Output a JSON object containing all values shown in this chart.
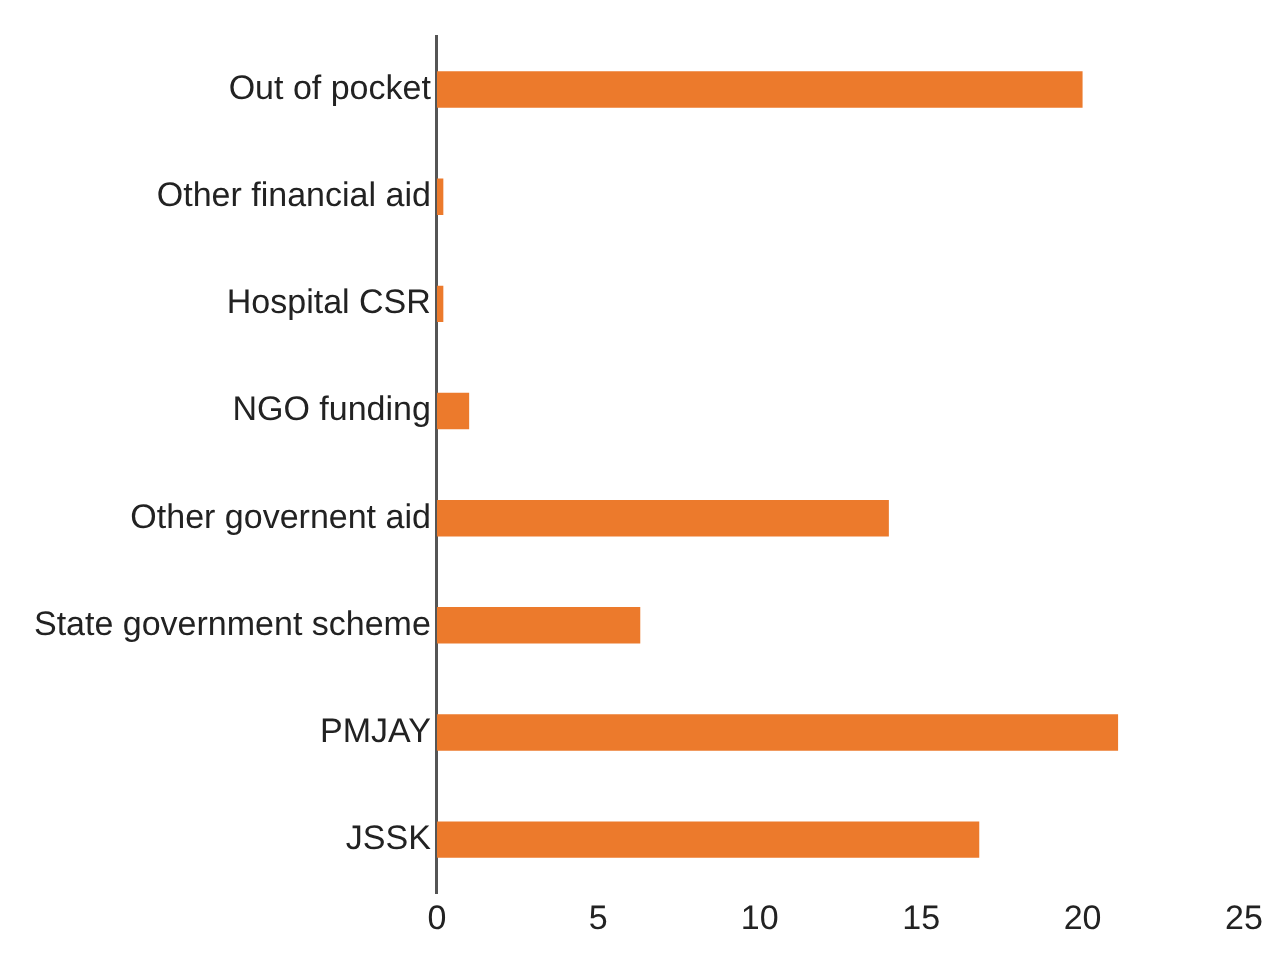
{
  "chart_data": {
    "type": "bar",
    "orientation": "horizontal",
    "categories": [
      "Out of pocket",
      "Other financial aid",
      "Hospital CSR",
      "NGO funding",
      "Other governent aid",
      "State government scheme",
      "PMJAY",
      "JSSK"
    ],
    "values": [
      20,
      0.2,
      0.2,
      1,
      14,
      6.3,
      21.1,
      16.8
    ],
    "color": "#ec7a2c",
    "xlim": [
      0,
      25
    ],
    "xticks": [
      0,
      5,
      10,
      15,
      20,
      25
    ],
    "grid": false,
    "legend": false
  }
}
